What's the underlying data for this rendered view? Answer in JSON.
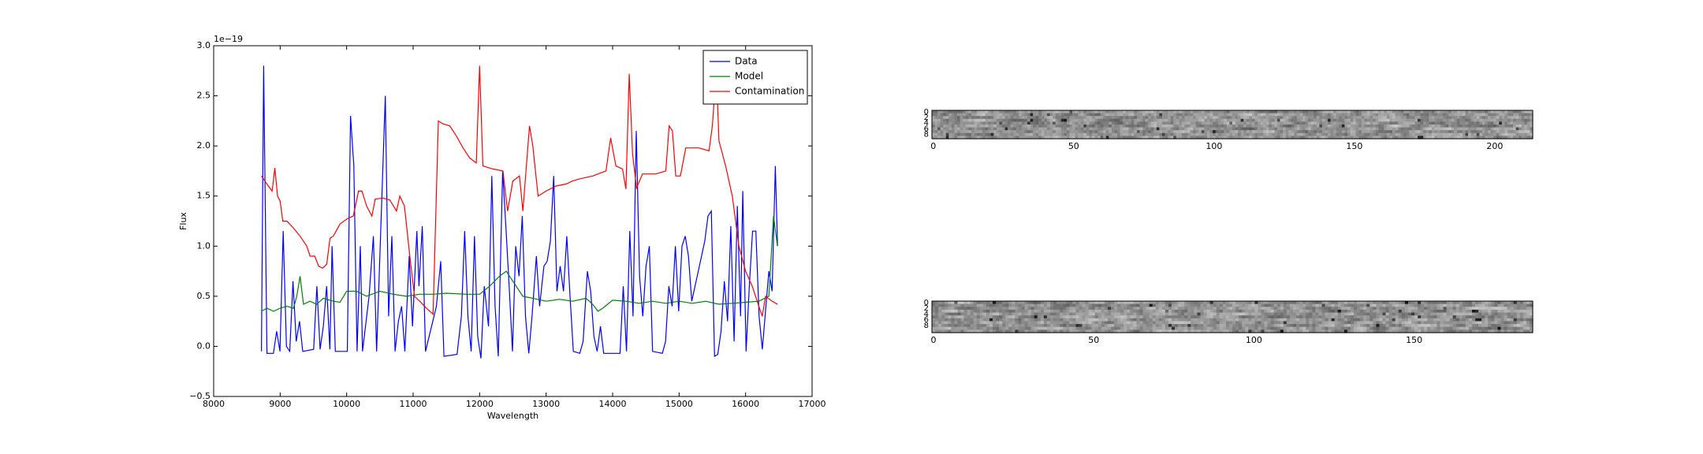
{
  "chart_data": [
    {
      "type": "line",
      "xlabel": "Wavelength",
      "ylabel": "Flux",
      "offset_label": "1e−19",
      "xlim": [
        8000,
        17000
      ],
      "xticks": [
        8000,
        9000,
        10000,
        11000,
        12000,
        13000,
        14000,
        15000,
        16000,
        17000
      ],
      "ylim": [
        -0.5,
        3.0
      ],
      "yticks": [
        {
          "value": -0.5,
          "label": "−0.5"
        },
        {
          "value": 0,
          "label": "0.0"
        },
        {
          "value": 0.5,
          "label": "0.5"
        },
        {
          "value": 1,
          "label": "1.0"
        },
        {
          "value": 1.5,
          "label": "1.5"
        },
        {
          "value": 2,
          "label": "2.0"
        },
        {
          "value": 2.5,
          "label": "2.5"
        },
        {
          "value": 3,
          "label": "3.0"
        }
      ],
      "legend": "upper right",
      "series": [
        {
          "name": "Data",
          "color": "#0000ff",
          "x": [
            8719,
            8752,
            8801,
            8899,
            8948,
            8997,
            9046,
            9095,
            9144,
            9193,
            9242,
            9291,
            9340,
            9503,
            9552,
            9601,
            9650,
            9699,
            9748,
            9781,
            9830,
            10010,
            10059,
            10108,
            10157,
            10206,
            10239,
            10337,
            10402,
            10451,
            10582,
            10631,
            10680,
            10729,
            10778,
            10827,
            10876,
            10941,
            10990,
            11056,
            11088,
            11137,
            11186,
            11350,
            11415,
            11464,
            11660,
            11726,
            11775,
            11824,
            11873,
            11922,
            11971,
            12020,
            12069,
            12134,
            12183,
            12232,
            12281,
            12346,
            12395,
            12444,
            12494,
            12543,
            12592,
            12641,
            12690,
            12739,
            12788,
            12853,
            12902,
            12967,
            13016,
            13065,
            13114,
            13163,
            13212,
            13261,
            13311,
            13360,
            13409,
            13507,
            13556,
            13621,
            13670,
            13719,
            13768,
            13817,
            13866,
            14111,
            14160,
            14209,
            14258,
            14307,
            14356,
            14405,
            14454,
            14503,
            14552,
            14601,
            14748,
            14797,
            14846,
            14895,
            14944,
            14994,
            15043,
            15092,
            15141,
            15190,
            15337,
            15386,
            15435,
            15484,
            15533,
            15582,
            15631,
            15680,
            15729,
            15778,
            15827,
            15876,
            15925,
            15958,
            16007,
            16056,
            16105,
            16154,
            16203,
            16252,
            16350,
            16399,
            16448,
            16481
          ],
          "values": [
            -0.05,
            2.8,
            -0.07,
            -0.07,
            0.15,
            -0.05,
            1.15,
            0,
            -0.05,
            0.65,
            0.05,
            0.25,
            -0.05,
            -0.03,
            0.6,
            -0.03,
            0.2,
            0.6,
            -0.03,
            1.0,
            -0.05,
            -0.05,
            2.3,
            1.8,
            -0.05,
            1.0,
            -0.05,
            0.5,
            1.1,
            -0.05,
            2.5,
            0.3,
            1.1,
            -0.05,
            0.25,
            0.4,
            -0.05,
            0.9,
            0.2,
            1.15,
            0.6,
            1.2,
            -0.05,
            0.4,
            0.85,
            -0.1,
            -0.08,
            0.3,
            1.15,
            0.3,
            -0.05,
            1.1,
            0.1,
            -0.12,
            0.6,
            0.2,
            1.7,
            0.4,
            -0.1,
            1.75,
            1.2,
            0.6,
            -0.05,
            1.0,
            0.7,
            1.3,
            0.3,
            -0.07,
            0.3,
            0.9,
            0.4,
            0.8,
            0.85,
            1.05,
            1.7,
            0.55,
            0.8,
            0.55,
            1.1,
            0.5,
            -0.05,
            -0.07,
            0.05,
            0.75,
            0.55,
            0.1,
            -0.05,
            0.2,
            -0.07,
            -0.07,
            0.6,
            -0.05,
            1.15,
            0.3,
            2.15,
            0.7,
            0.3,
            0.8,
            1.0,
            -0.05,
            -0.07,
            0.05,
            0.6,
            0.4,
            1.0,
            0.35,
            1.0,
            1.1,
            0.9,
            0.45,
            0.9,
            1.05,
            1.3,
            1.35,
            -0.1,
            -0.08,
            0.15,
            0.65,
            0.25,
            1.2,
            0.05,
            1.4,
            0.3,
            1.55,
            -0.05,
            0.6,
            1.15,
            1.15,
            0.3,
            -0.03,
            0.75,
            0.55,
            1.8,
            1.0
          ]
        },
        {
          "name": "Model",
          "color": "#008000",
          "x": [
            8719,
            8800,
            8900,
            9000,
            9100,
            9200,
            9250,
            9300,
            9350,
            9450,
            9550,
            9650,
            9800,
            9900,
            10000,
            10150,
            10300,
            10500,
            10700,
            10900,
            11100,
            11300,
            11500,
            11800,
            12000,
            12150,
            12300,
            12400,
            12500,
            12650,
            12800,
            13000,
            13200,
            13400,
            13600,
            13700,
            13780,
            13850,
            14000,
            14200,
            14400,
            14600,
            14800,
            15000,
            15200,
            15400,
            15600,
            15800,
            16000,
            16200,
            16350,
            16420,
            16480
          ],
          "values": [
            0.35,
            0.38,
            0.35,
            0.38,
            0.4,
            0.38,
            0.5,
            0.7,
            0.42,
            0.45,
            0.42,
            0.48,
            0.45,
            0.44,
            0.55,
            0.55,
            0.5,
            0.55,
            0.52,
            0.5,
            0.52,
            0.52,
            0.53,
            0.52,
            0.52,
            0.6,
            0.7,
            0.75,
            0.65,
            0.5,
            0.48,
            0.45,
            0.47,
            0.45,
            0.48,
            0.42,
            0.35,
            0.38,
            0.46,
            0.45,
            0.43,
            0.45,
            0.43,
            0.45,
            0.43,
            0.45,
            0.42,
            0.43,
            0.44,
            0.45,
            0.5,
            1.3,
            1.0
          ]
        },
        {
          "name": "Contamination",
          "color": "#ff0000",
          "x": [
            8719,
            8800,
            8880,
            8920,
            8960,
            9000,
            9040,
            9100,
            9200,
            9300,
            9400,
            9450,
            9520,
            9580,
            9640,
            9700,
            9750,
            9800,
            9900,
            10000,
            10100,
            10180,
            10230,
            10300,
            10380,
            10430,
            10550,
            10650,
            10750,
            10800,
            10870,
            10950,
            11020,
            11100,
            11200,
            11300,
            11380,
            11450,
            11550,
            11650,
            11750,
            11850,
            11950,
            12000,
            12050,
            12200,
            12350,
            12420,
            12500,
            12600,
            12650,
            12750,
            12800,
            12880,
            13000,
            13150,
            13300,
            13400,
            13500,
            13700,
            13900,
            13970,
            14050,
            14150,
            14200,
            14250,
            14300,
            14360,
            14450,
            14650,
            14800,
            14850,
            14900,
            14950,
            15020,
            15100,
            15300,
            15450,
            15500,
            15560,
            15600,
            15700,
            15800,
            15900,
            16000,
            16100,
            16200,
            16250,
            16300,
            16400,
            16480
          ],
          "values": [
            1.7,
            1.62,
            1.55,
            1.78,
            1.5,
            1.45,
            1.25,
            1.25,
            1.18,
            1.1,
            1.0,
            0.9,
            0.9,
            0.8,
            0.78,
            0.82,
            1.08,
            1.1,
            1.22,
            1.27,
            1.3,
            1.55,
            1.55,
            1.4,
            1.3,
            1.47,
            1.48,
            1.46,
            1.35,
            1.5,
            1.4,
            0.9,
            0.5,
            0.45,
            0.38,
            0.32,
            2.25,
            2.22,
            2.2,
            2.1,
            1.98,
            1.88,
            1.83,
            2.8,
            1.8,
            1.77,
            1.75,
            1.35,
            1.65,
            1.7,
            1.35,
            2.2,
            2.0,
            1.5,
            1.55,
            1.6,
            1.62,
            1.65,
            1.67,
            1.7,
            1.75,
            2.08,
            1.8,
            1.77,
            1.57,
            2.72,
            1.92,
            1.58,
            1.72,
            1.72,
            1.75,
            2.2,
            2.15,
            1.7,
            1.7,
            1.98,
            1.98,
            1.95,
            2.2,
            2.75,
            2.05,
            1.8,
            1.5,
            1.0,
            0.75,
            0.6,
            0.4,
            0.3,
            0.5,
            0.45,
            0.42
          ]
        }
      ]
    },
    {
      "type": "image",
      "xlim": [
        -0.5,
        213.5
      ],
      "xticks": [
        0,
        50,
        100,
        150,
        200
      ],
      "ylim": [
        9.5,
        -0.5
      ],
      "yticks": [
        0,
        2,
        4,
        6,
        8
      ]
    },
    {
      "type": "image",
      "xlim": [
        -0.5,
        187
      ],
      "xticks": [
        0,
        50,
        100,
        150
      ],
      "ylim": [
        10.5,
        -0.5
      ],
      "yticks": [
        0,
        2,
        4,
        6,
        8
      ]
    }
  ]
}
